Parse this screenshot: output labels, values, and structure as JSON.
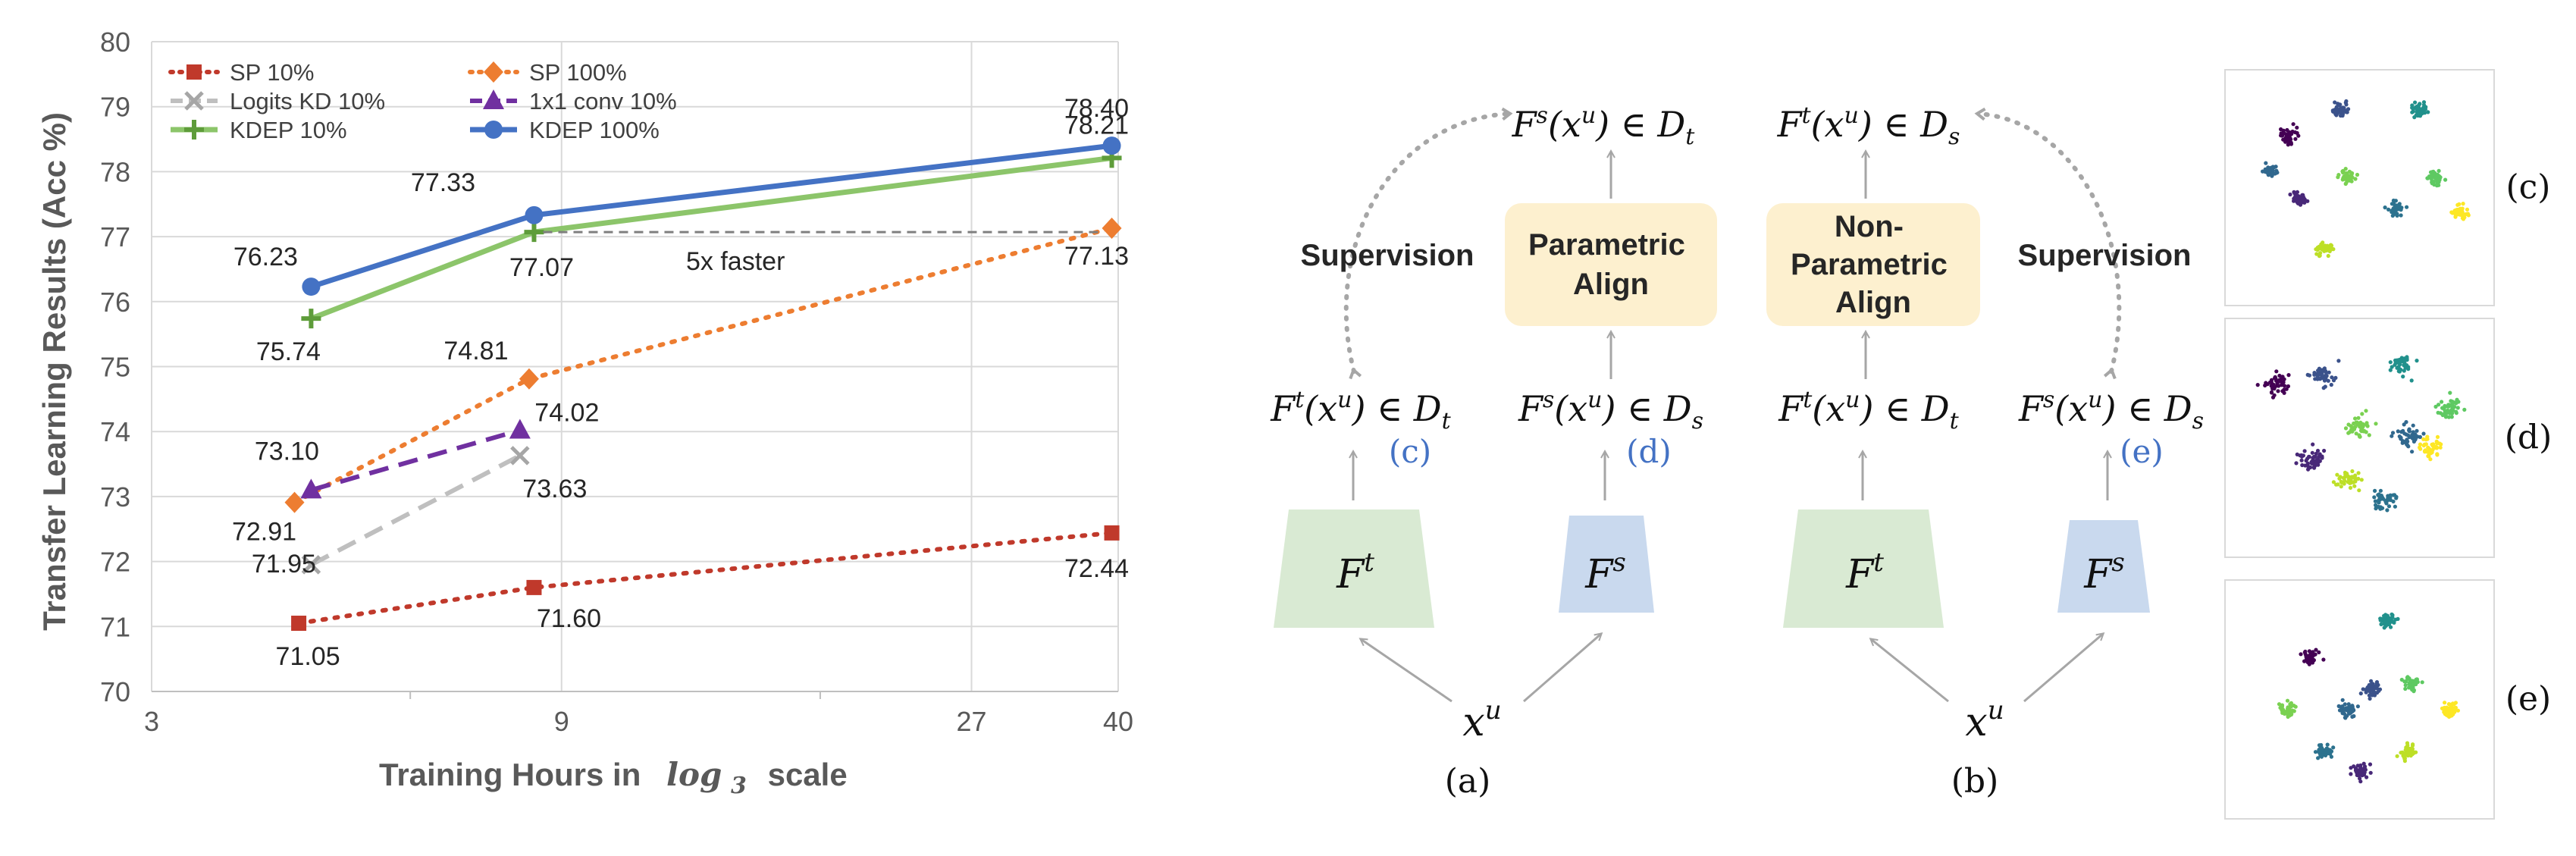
{
  "chart_data": {
    "type": "line",
    "xlabel_main": "Training Hours in",
    "xlabel_math_base": "log",
    "xlabel_math_sub": "3",
    "xlabel_suffix": "scale",
    "ylabel": "Transfer Learning Results (Acc %)",
    "x_scale": "log3",
    "xlim": [
      3,
      40
    ],
    "ylim": [
      70,
      80
    ],
    "x_ticks": [
      3,
      9,
      27,
      40
    ],
    "y_ticks": [
      70,
      71,
      72,
      73,
      74,
      75,
      76,
      77,
      78,
      79,
      80
    ],
    "grid": true,
    "legend_position": "top-left",
    "series": [
      {
        "name": "SP 10%",
        "x": [
          4.45,
          8.36,
          39.32
        ],
        "values": [
          71.05,
          71.6,
          72.44
        ],
        "value_labels": [
          "71.05",
          "71.60",
          "72.44"
        ],
        "color": "#c0392b",
        "line": "dotted",
        "marker": "square"
      },
      {
        "name": "SP 100%",
        "x": [
          4.4,
          8.25,
          39.32
        ],
        "values": [
          72.91,
          74.81,
          77.13
        ],
        "value_labels": [
          "72.91",
          "74.81",
          "77.13"
        ],
        "color": "#ed7d31",
        "line": "dotted",
        "marker": "diamond"
      },
      {
        "name": "Logits KD 10%",
        "x": [
          4.6,
          8.05
        ],
        "values": [
          71.95,
          73.63
        ],
        "value_labels": [
          "71.95",
          "73.63"
        ],
        "color": "#bfbfbf",
        "line": "dashed",
        "marker": "x"
      },
      {
        "name": "1x1 conv 10%",
        "x": [
          4.6,
          8.05
        ],
        "values": [
          73.1,
          74.02
        ],
        "value_labels": [
          "73.10",
          "74.02"
        ],
        "color": "#7030a0",
        "line": "dashed",
        "marker": "triangle"
      },
      {
        "name": "KDEP 10%",
        "x": [
          4.6,
          8.36,
          39.32
        ],
        "values": [
          75.74,
          77.07,
          78.21
        ],
        "value_labels": [
          "75.74",
          "77.07",
          "78.21"
        ],
        "color": "#8cc56a",
        "line": "solid",
        "marker": "plus"
      },
      {
        "name": "KDEP 100%",
        "x": [
          4.6,
          8.36,
          39.32
        ],
        "values": [
          76.23,
          77.33,
          78.4
        ],
        "value_labels": [
          "76.23",
          "77.33",
          "78.40"
        ],
        "color": "#4472c4",
        "line": "solid",
        "marker": "circle"
      }
    ],
    "annotation": "5x faster"
  },
  "diagram": {
    "panel_a": {
      "supervision": "Supervision",
      "align_line1": "Parametric",
      "align_line2": "Align",
      "top_formula": {
        "base": "F",
        "sup": "s",
        "arg": "(x",
        "argsup": "u",
        "rest": ") ∈ D",
        "sub": "t"
      },
      "left_formula": {
        "base": "F",
        "sup": "t",
        "arg": "(x",
        "argsup": "u",
        "rest": ") ∈ D",
        "sub": "t"
      },
      "right_formula": {
        "base": "F",
        "sup": "s",
        "arg": "(x",
        "argsup": "u",
        "rest": ") ∈ D",
        "sub": "s"
      },
      "left_tag": "(c)",
      "right_tag": "(d)",
      "teacher": {
        "base": "F",
        "sup": "t"
      },
      "student": {
        "base": "F",
        "sup": "s"
      },
      "input": {
        "base": "x",
        "sup": "u"
      },
      "caption": "(a)"
    },
    "panel_b": {
      "supervision": "Supervision",
      "align_line1": "Non-",
      "align_line2": "Parametric",
      "align_line3": "Align",
      "top_formula": {
        "base": "F",
        "sup": "t",
        "arg": "(x",
        "argsup": "u",
        "rest": ") ∈ D",
        "sub": "s"
      },
      "left_formula": {
        "base": "F",
        "sup": "t",
        "arg": "(x",
        "argsup": "u",
        "rest": ") ∈ D",
        "sub": "t"
      },
      "right_formula": {
        "base": "F",
        "sup": "s",
        "arg": "(x",
        "argsup": "u",
        "rest": ") ∈ D",
        "sub": "s"
      },
      "right_tag": "(e)",
      "teacher": {
        "base": "F",
        "sup": "t"
      },
      "student": {
        "base": "F",
        "sup": "s"
      },
      "input": {
        "base": "x",
        "sup": "u"
      },
      "caption": "(b)"
    },
    "tsne_labels": [
      "(c)",
      "(d)",
      "(e)"
    ],
    "colors": {
      "teacher": "#d9ead3",
      "student": "#c9d9ee",
      "align_box": "#fdf0cf",
      "tag": "#4472c4",
      "arrow": "#a6a6a6"
    }
  }
}
